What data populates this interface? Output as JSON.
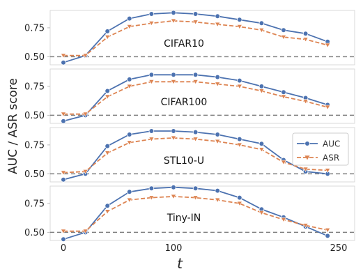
{
  "chart_data": {
    "type": "line",
    "ylabel": "AUC / ASR score",
    "xlabel": "t",
    "xlim": [
      0,
      250
    ],
    "x_ticks": [
      "0",
      "100",
      "250"
    ],
    "y_ticks": [
      "0.50",
      "0.75"
    ],
    "ylim": [
      0.43,
      0.9
    ],
    "reference_line": 0.5,
    "legend": {
      "panel": 2,
      "placement": "right",
      "entries": [
        "AUC",
        "ASR"
      ]
    },
    "colors": {
      "AUC": "#4c72b0",
      "ASR": "#dd8452",
      "reference": "#808080"
    },
    "x": [
      0,
      20,
      40,
      60,
      80,
      100,
      120,
      140,
      160,
      180,
      200,
      220,
      240
    ],
    "panels": [
      {
        "title": "CIFAR10",
        "series": [
          {
            "name": "AUC",
            "values": [
              0.45,
              0.51,
              0.72,
              0.83,
              0.87,
              0.88,
              0.87,
              0.85,
              0.82,
              0.79,
              0.73,
              0.7,
              0.63
            ]
          },
          {
            "name": "ASR",
            "values": [
              0.51,
              0.51,
              0.67,
              0.76,
              0.79,
              0.81,
              0.8,
              0.78,
              0.76,
              0.73,
              0.67,
              0.65,
              0.6
            ]
          }
        ]
      },
      {
        "title": "CIFAR100",
        "series": [
          {
            "name": "AUC",
            "values": [
              0.45,
              0.5,
              0.71,
              0.81,
              0.85,
              0.85,
              0.85,
              0.83,
              0.8,
              0.75,
              0.7,
              0.65,
              0.59
            ]
          },
          {
            "name": "ASR",
            "values": [
              0.51,
              0.51,
              0.66,
              0.75,
              0.79,
              0.79,
              0.79,
              0.77,
              0.75,
              0.71,
              0.66,
              0.62,
              0.57
            ]
          }
        ]
      },
      {
        "title": "STL10-U",
        "series": [
          {
            "name": "AUC",
            "values": [
              0.45,
              0.5,
              0.74,
              0.84,
              0.87,
              0.87,
              0.86,
              0.84,
              0.8,
              0.76,
              0.62,
              0.52,
              0.5
            ]
          },
          {
            "name": "ASR",
            "values": [
              0.51,
              0.52,
              0.68,
              0.77,
              0.8,
              0.81,
              0.8,
              0.78,
              0.75,
              0.71,
              0.6,
              0.54,
              0.53
            ]
          }
        ]
      },
      {
        "title": "Tiny-IN",
        "series": [
          {
            "name": "AUC",
            "values": [
              0.44,
              0.5,
              0.73,
              0.85,
              0.88,
              0.89,
              0.88,
              0.86,
              0.8,
              0.7,
              0.63,
              0.55,
              0.47
            ]
          },
          {
            "name": "ASR",
            "values": [
              0.51,
              0.51,
              0.68,
              0.78,
              0.8,
              0.81,
              0.8,
              0.78,
              0.75,
              0.67,
              0.61,
              0.56,
              0.52
            ]
          }
        ]
      }
    ]
  }
}
